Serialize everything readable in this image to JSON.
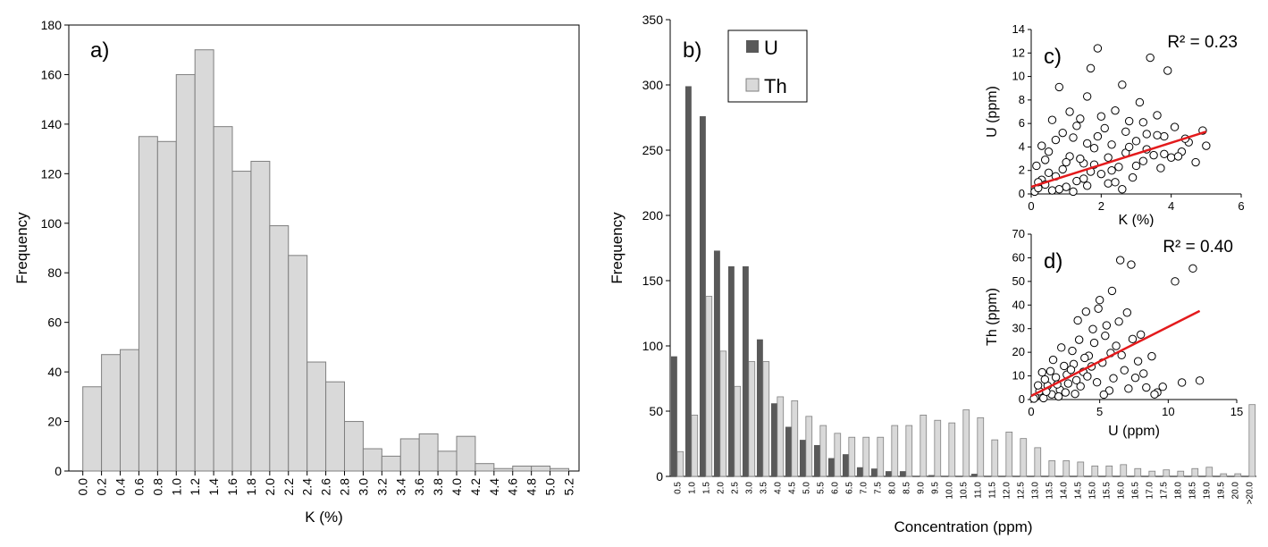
{
  "chart_data": [
    {
      "panel_label": "a)",
      "type": "bar",
      "xlabel": "K (%)",
      "ylabel": "Frequency",
      "ylim": [
        0,
        180
      ],
      "yticks": [
        0,
        20,
        40,
        60,
        80,
        100,
        120,
        140,
        160,
        180
      ],
      "xticks": [
        "0.0",
        "0.2",
        "0.4",
        "0.6",
        "0.8",
        "1.0",
        "1.2",
        "1.4",
        "1.6",
        "1.8",
        "2.0",
        "2.2",
        "2.4",
        "2.6",
        "2.8",
        "3.0",
        "3.2",
        "3.4",
        "3.6",
        "3.8",
        "4.0",
        "4.2",
        "4.4",
        "4.6",
        "4.8",
        "5.0",
        "5.2"
      ],
      "values": [
        34,
        47,
        49,
        135,
        133,
        160,
        170,
        139,
        121,
        125,
        99,
        87,
        44,
        36,
        20,
        9,
        6,
        13,
        15,
        8,
        14,
        3,
        1,
        2,
        2,
        1
      ],
      "color": "#d9d9d9"
    },
    {
      "panel_label": "b)",
      "type": "bar",
      "xlabel": "Concentration (ppm)",
      "ylabel": "Frequency",
      "ylim": [
        0,
        350
      ],
      "yticks": [
        0,
        50,
        100,
        150,
        200,
        250,
        300,
        350
      ],
      "categories": [
        "0.5",
        "1.0",
        "1.5",
        "2.0",
        "2.5",
        "3.0",
        "3.5",
        "4.0",
        "4.5",
        "5.0",
        "5.5",
        "6.0",
        "6.5",
        "7.0",
        "7.5",
        "8.0",
        "8.5",
        "9.0",
        "9.5",
        "10.0",
        "10.5",
        "11.0",
        "11.5",
        "12.0",
        "12.5",
        "13.0",
        "13.5",
        "14.0",
        "14.5",
        "15.0",
        "15.5",
        "16.0",
        "16.5",
        "17.0",
        "17.5",
        "18.0",
        "18.5",
        "19.0",
        "19.5",
        "20.0",
        ">20.0"
      ],
      "legend": [
        "U",
        "Th"
      ],
      "series": [
        {
          "name": "U",
          "color": "#595959",
          "values": [
            92,
            299,
            276,
            173,
            161,
            161,
            105,
            56,
            38,
            28,
            24,
            14,
            17,
            7,
            6,
            4,
            4,
            0,
            1,
            0,
            0,
            2,
            0,
            0,
            0,
            0,
            0,
            0,
            0,
            0,
            0,
            0,
            0,
            0,
            0,
            0,
            0,
            0,
            0,
            0,
            0
          ]
        },
        {
          "name": "Th",
          "color": "#d9d9d9",
          "values": [
            19,
            47,
            138,
            96,
            69,
            88,
            88,
            61,
            58,
            46,
            39,
            33,
            30,
            30,
            30,
            39,
            39,
            47,
            43,
            41,
            51,
            45,
            28,
            34,
            29,
            22,
            12,
            12,
            11,
            8,
            8,
            9,
            6,
            4,
            5,
            4,
            6,
            7,
            2,
            2,
            55
          ]
        }
      ]
    },
    {
      "panel_label": "c)",
      "type": "scatter",
      "xlabel": "K (%)",
      "ylabel": "U (ppm)",
      "xlim": [
        0,
        6
      ],
      "ylim": [
        0,
        14
      ],
      "xticks": [
        0,
        2,
        4,
        6
      ],
      "yticks": [
        0,
        2,
        4,
        6,
        8,
        10,
        12,
        14
      ],
      "r2_label": "R² = 0.23",
      "trendline": {
        "x": [
          0,
          5
        ],
        "y": [
          0.6,
          5.3
        ],
        "color": "#e31a1c"
      },
      "points": [
        [
          0.1,
          0.2
        ],
        [
          0.2,
          0.5
        ],
        [
          0.3,
          1.2
        ],
        [
          0.15,
          2.4
        ],
        [
          0.4,
          0.8
        ],
        [
          0.5,
          3.6
        ],
        [
          0.6,
          6.3
        ],
        [
          0.7,
          1.5
        ],
        [
          0.8,
          9.1
        ],
        [
          0.9,
          2.1
        ],
        [
          1.0,
          0.6
        ],
        [
          1.1,
          3.2
        ],
        [
          1.2,
          4.8
        ],
        [
          1.3,
          1.1
        ],
        [
          1.4,
          6.4
        ],
        [
          1.5,
          2.6
        ],
        [
          1.6,
          8.3
        ],
        [
          1.7,
          10.7
        ],
        [
          1.8,
          3.9
        ],
        [
          1.9,
          12.4
        ],
        [
          2.0,
          1.7
        ],
        [
          2.1,
          5.6
        ],
        [
          2.2,
          0.9
        ],
        [
          2.3,
          4.2
        ],
        [
          2.4,
          7.1
        ],
        [
          2.5,
          2.3
        ],
        [
          2.6,
          9.3
        ],
        [
          2.7,
          3.5
        ],
        [
          2.8,
          6.2
        ],
        [
          2.9,
          1.4
        ],
        [
          3.0,
          4.5
        ],
        [
          3.1,
          7.8
        ],
        [
          3.2,
          2.8
        ],
        [
          3.3,
          5.1
        ],
        [
          3.4,
          11.6
        ],
        [
          3.5,
          3.3
        ],
        [
          3.6,
          6.7
        ],
        [
          3.7,
          2.2
        ],
        [
          3.8,
          4.9
        ],
        [
          3.9,
          10.5
        ],
        [
          4.0,
          3.1
        ],
        [
          4.1,
          5.7
        ],
        [
          4.3,
          3.6
        ],
        [
          4.5,
          4.4
        ],
        [
          4.7,
          2.7
        ],
        [
          4.9,
          5.4
        ],
        [
          5.0,
          4.1
        ],
        [
          0.3,
          4.1
        ],
        [
          0.6,
          0.3
        ],
        [
          1.2,
          0.2
        ],
        [
          0.9,
          5.2
        ],
        [
          1.4,
          3.0
        ],
        [
          1.7,
          1.9
        ],
        [
          2.2,
          3.1
        ],
        [
          2.6,
          0.4
        ],
        [
          1.1,
          7.0
        ],
        [
          1.6,
          4.3
        ],
        [
          2.0,
          6.6
        ],
        [
          2.8,
          4.0
        ],
        [
          3.3,
          3.8
        ],
        [
          0.4,
          2.9
        ],
        [
          0.7,
          4.6
        ],
        [
          1.3,
          5.8
        ],
        [
          1.8,
          2.5
        ],
        [
          2.4,
          1.0
        ],
        [
          3.0,
          2.4
        ],
        [
          3.6,
          5.0
        ],
        [
          4.2,
          3.2
        ],
        [
          0.2,
          1.0
        ],
        [
          0.5,
          1.8
        ],
        [
          1.0,
          2.7
        ],
        [
          1.5,
          1.3
        ],
        [
          1.9,
          4.9
        ],
        [
          2.3,
          2.0
        ],
        [
          2.7,
          5.3
        ],
        [
          3.2,
          6.1
        ],
        [
          3.8,
          3.4
        ],
        [
          4.4,
          4.7
        ],
        [
          0.8,
          0.4
        ],
        [
          1.6,
          0.7
        ]
      ]
    },
    {
      "panel_label": "d)",
      "type": "scatter",
      "xlabel": "U (ppm)",
      "ylabel": "Th (ppm)",
      "xlim": [
        0,
        15
      ],
      "ylim": [
        0,
        70
      ],
      "xticks": [
        0,
        5,
        10,
        15
      ],
      "yticks": [
        0,
        10,
        20,
        30,
        40,
        50,
        60,
        70
      ],
      "r2_label": "R² = 0.40",
      "trendline": {
        "x": [
          0,
          12.3
        ],
        "y": [
          1.5,
          37.5
        ],
        "color": "#e31a1c"
      },
      "points": [
        [
          0.3,
          1.0
        ],
        [
          0.6,
          3.5
        ],
        [
          0.9,
          0.6
        ],
        [
          1.2,
          5.8
        ],
        [
          1.5,
          2.2
        ],
        [
          1.8,
          9.4
        ],
        [
          2.1,
          4.1
        ],
        [
          2.4,
          14.2
        ],
        [
          2.7,
          6.8
        ],
        [
          3.0,
          20.6
        ],
        [
          3.2,
          2.4
        ],
        [
          3.5,
          25.3
        ],
        [
          3.8,
          11.7
        ],
        [
          4.0,
          37.2
        ],
        [
          4.2,
          18.5
        ],
        [
          4.5,
          29.8
        ],
        [
          4.8,
          7.3
        ],
        [
          5.0,
          42.1
        ],
        [
          5.2,
          15.6
        ],
        [
          5.5,
          31.4
        ],
        [
          5.7,
          3.8
        ],
        [
          5.9,
          46.0
        ],
        [
          6.2,
          22.7
        ],
        [
          6.5,
          59.0
        ],
        [
          6.8,
          12.4
        ],
        [
          7.0,
          36.8
        ],
        [
          7.3,
          57.1
        ],
        [
          7.6,
          9.2
        ],
        [
          8.0,
          27.5
        ],
        [
          8.4,
          5.1
        ],
        [
          8.8,
          18.3
        ],
        [
          9.2,
          3.0
        ],
        [
          9.6,
          5.4
        ],
        [
          10.5,
          50.0
        ],
        [
          11.0,
          7.2
        ],
        [
          11.8,
          55.5
        ],
        [
          12.3,
          8.0
        ],
        [
          1.0,
          8.5
        ],
        [
          1.4,
          12.0
        ],
        [
          2.0,
          1.3
        ],
        [
          2.6,
          10.5
        ],
        [
          3.1,
          15.0
        ],
        [
          3.6,
          5.6
        ],
        [
          4.1,
          9.8
        ],
        [
          4.6,
          24.0
        ],
        [
          5.3,
          2.1
        ],
        [
          5.8,
          19.7
        ],
        [
          6.4,
          33.0
        ],
        [
          7.1,
          4.6
        ],
        [
          7.8,
          16.2
        ],
        [
          0.5,
          6.0
        ],
        [
          0.8,
          11.5
        ],
        [
          1.6,
          16.8
        ],
        [
          2.2,
          22.0
        ],
        [
          2.9,
          12.6
        ],
        [
          3.4,
          33.5
        ],
        [
          4.4,
          14.0
        ],
        [
          4.9,
          38.5
        ],
        [
          5.4,
          27.0
        ],
        [
          6.0,
          9.0
        ],
        [
          6.6,
          18.8
        ],
        [
          7.4,
          25.6
        ],
        [
          8.2,
          11.0
        ],
        [
          9.0,
          2.2
        ],
        [
          0.2,
          0.4
        ],
        [
          1.1,
          3.3
        ],
        [
          1.9,
          6.4
        ],
        [
          2.5,
          3.0
        ],
        [
          3.3,
          8.2
        ],
        [
          3.9,
          17.6
        ]
      ]
    }
  ]
}
